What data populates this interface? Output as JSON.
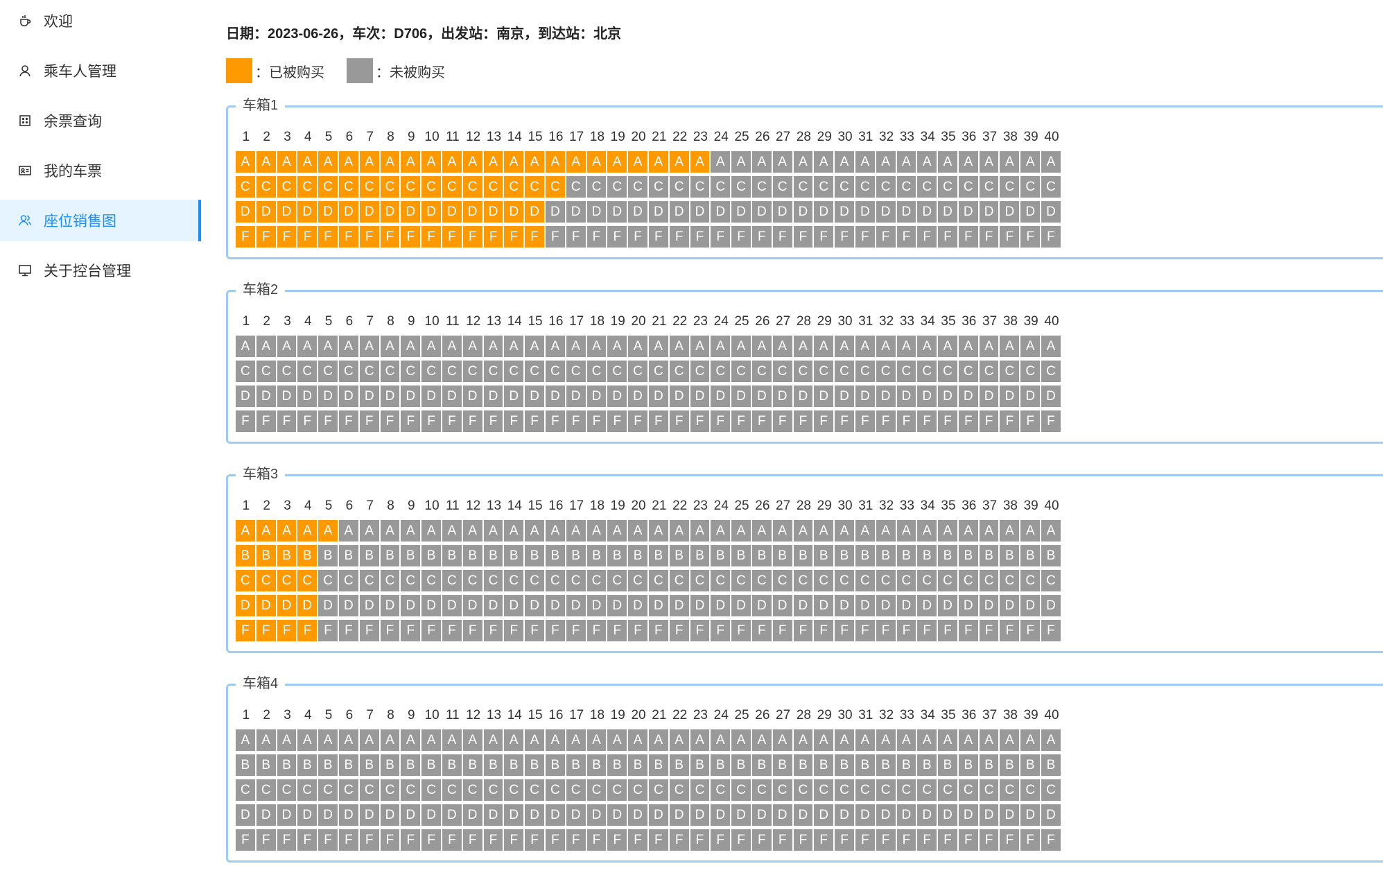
{
  "colors": {
    "sold": "#ff9900",
    "unsold": "#999999",
    "accent": "#1890ff"
  },
  "sidebar": {
    "items": [
      {
        "label": "欢迎",
        "icon": "coffee-icon",
        "active": false
      },
      {
        "label": "乘车人管理",
        "icon": "user-icon",
        "active": false
      },
      {
        "label": "余票查询",
        "icon": "grid-icon",
        "active": false
      },
      {
        "label": "我的车票",
        "icon": "id-card-icon",
        "active": false
      },
      {
        "label": "座位销售图",
        "icon": "users-icon",
        "active": true
      },
      {
        "label": "关于控台管理",
        "icon": "desktop-icon",
        "active": false
      }
    ]
  },
  "info": {
    "text": "日期：2023-06-26，车次：D706，出发站：南京，到达站：北京"
  },
  "legend": {
    "sold_label": "：已被购买",
    "unsold_label": "：未被购买"
  },
  "carriages": [
    {
      "name": "车箱1",
      "rows": [
        {
          "letter": "A",
          "sold": 23
        },
        {
          "letter": "C",
          "sold": 16
        },
        {
          "letter": "D",
          "sold": 15
        },
        {
          "letter": "F",
          "sold": 15
        }
      ]
    },
    {
      "name": "车箱2",
      "rows": [
        {
          "letter": "A",
          "sold": 0
        },
        {
          "letter": "C",
          "sold": 0
        },
        {
          "letter": "D",
          "sold": 0
        },
        {
          "letter": "F",
          "sold": 0
        }
      ]
    },
    {
      "name": "车箱3",
      "rows": [
        {
          "letter": "A",
          "sold": 5
        },
        {
          "letter": "B",
          "sold": 4
        },
        {
          "letter": "C",
          "sold": 4
        },
        {
          "letter": "D",
          "sold": 4
        },
        {
          "letter": "F",
          "sold": 4
        }
      ]
    },
    {
      "name": "车箱4",
      "rows": [
        {
          "letter": "A",
          "sold": 0
        },
        {
          "letter": "B",
          "sold": 0
        },
        {
          "letter": "C",
          "sold": 0
        },
        {
          "letter": "D",
          "sold": 0
        },
        {
          "letter": "F",
          "sold": 0
        }
      ]
    }
  ],
  "seats_per_row": 40
}
